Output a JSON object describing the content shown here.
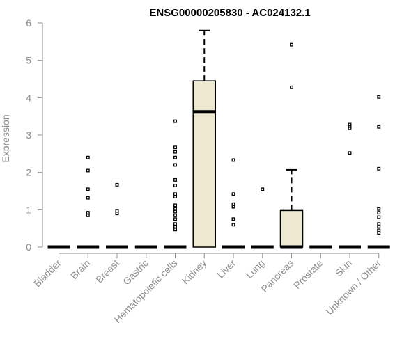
{
  "chart_data": {
    "type": "boxplot",
    "title": "ENSG00000205830 - AC024132.1",
    "ylabel": "Expression",
    "xlabel": "",
    "ylim": [
      0,
      6
    ],
    "yticks": [
      0,
      1,
      2,
      3,
      4,
      5,
      6
    ],
    "grid": false,
    "box_fill": "#ede8cf",
    "median_color": "#000000",
    "categories": [
      "Bladder",
      "Brain",
      "Breast",
      "Gastric",
      "Hematopoietic cells",
      "Kidney",
      "Liver",
      "Lung",
      "Pancreas",
      "Prostate",
      "Skin",
      "Unknown / Other"
    ],
    "boxes": [
      {
        "q1": 0,
        "median": 0,
        "q3": 0,
        "whisker_low": 0,
        "whisker_high": 0,
        "outliers": []
      },
      {
        "q1": 0,
        "median": 0,
        "q3": 0,
        "whisker_low": 0,
        "whisker_high": 0,
        "outliers": [
          0.85,
          0.92,
          1.32,
          1.55,
          2.05,
          2.4
        ]
      },
      {
        "q1": 0,
        "median": 0,
        "q3": 0,
        "whisker_low": 0,
        "whisker_high": 0,
        "outliers": [
          0.9,
          0.97,
          1.67
        ]
      },
      {
        "q1": 0,
        "median": 0,
        "q3": 0,
        "whisker_low": 0,
        "whisker_high": 0,
        "outliers": []
      },
      {
        "q1": 0,
        "median": 0,
        "q3": 0,
        "whisker_low": 0,
        "whisker_high": 0,
        "outliers": [
          0.47,
          0.55,
          0.62,
          0.75,
          0.85,
          0.95,
          1.02,
          1.12,
          1.35,
          1.42,
          1.65,
          1.8,
          2.2,
          2.4,
          2.55,
          2.67,
          3.37
        ]
      },
      {
        "q1": 0,
        "median": 3.62,
        "q3": 4.45,
        "whisker_low": 0,
        "whisker_high": 5.8,
        "outliers": []
      },
      {
        "q1": 0,
        "median": 0,
        "q3": 0,
        "whisker_low": 0,
        "whisker_high": 0,
        "outliers": [
          0.6,
          0.75,
          1.08,
          1.15,
          1.42,
          2.33
        ]
      },
      {
        "q1": 0,
        "median": 0,
        "q3": 0,
        "whisker_low": 0,
        "whisker_high": 0,
        "outliers": [
          1.55
        ]
      },
      {
        "q1": 0,
        "median": 0,
        "q3": 0.98,
        "whisker_low": 0,
        "whisker_high": 2.07,
        "outliers": [
          4.28,
          5.42
        ]
      },
      {
        "q1": 0,
        "median": 0,
        "q3": 0,
        "whisker_low": 0,
        "whisker_high": 0,
        "outliers": []
      },
      {
        "q1": 0,
        "median": 0,
        "q3": 0,
        "whisker_low": 0,
        "whisker_high": 0,
        "outliers": [
          2.52,
          3.18,
          3.24,
          3.28
        ]
      },
      {
        "q1": 0,
        "median": 0,
        "q3": 0,
        "whisker_low": 0,
        "whisker_high": 0,
        "outliers": [
          0.38,
          0.45,
          0.55,
          0.62,
          0.8,
          0.92,
          1.02,
          2.1,
          3.22,
          4.02
        ]
      }
    ]
  }
}
